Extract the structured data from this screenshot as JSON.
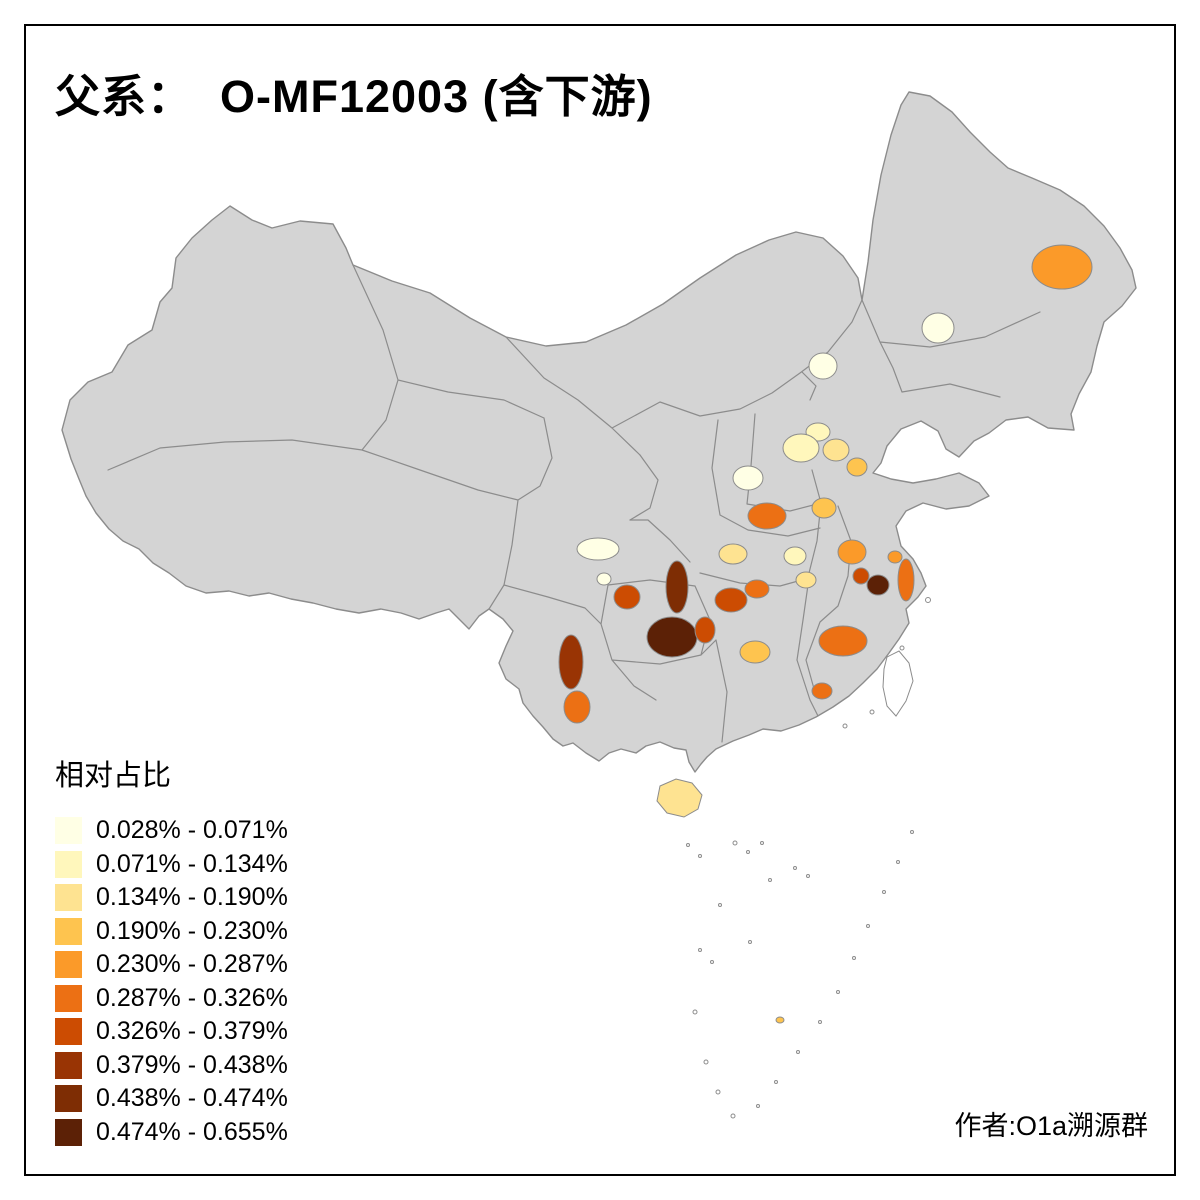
{
  "title": "父系：  O-MF12003 (含下游)",
  "legend": {
    "title": "相对占比",
    "items": [
      {
        "label": "0.028% - 0.071%",
        "color": "#FFFFE5"
      },
      {
        "label": "0.071% - 0.134%",
        "color": "#FFF7BC"
      },
      {
        "label": "0.134% - 0.190%",
        "color": "#FEE391"
      },
      {
        "label": "0.190% - 0.230%",
        "color": "#FEC44F"
      },
      {
        "label": "0.230% - 0.287%",
        "color": "#FB9A29"
      },
      {
        "label": "0.287% - 0.326%",
        "color": "#EC7014"
      },
      {
        "label": "0.326% - 0.379%",
        "color": "#CC4C02"
      },
      {
        "label": "0.379% - 0.438%",
        "color": "#993404"
      },
      {
        "label": "0.438% - 0.474%",
        "color": "#7E2D04"
      },
      {
        "label": "0.474% - 0.655%",
        "color": "#5C2106"
      }
    ]
  },
  "credit": "作者:O1a溯源群",
  "map": {
    "land_color": "#d4d4d4",
    "border_color": "#8c8c8c",
    "island_fill": "#ffffff",
    "regions": {
      "r1": 5,
      "r2": 1,
      "r3": 1,
      "r4": 2,
      "r5": 3,
      "r6": 4,
      "r7": 1,
      "r8": 6,
      "r9": 4,
      "r10": 5,
      "r11": 3,
      "r12": 2,
      "r13": 1,
      "r14": 1,
      "r15": 7,
      "r16": 9,
      "r17": 10,
      "r18": 7,
      "r19": 7,
      "r20": 6,
      "r21": 3,
      "r22": 4,
      "r23": 6,
      "r24": 10,
      "r25": 7,
      "r26": 6,
      "r27": 5,
      "r28": 6,
      "r29": 8,
      "r30": 6,
      "r32": 4,
      "r33": 2,
      "hainan": 3
    }
  }
}
